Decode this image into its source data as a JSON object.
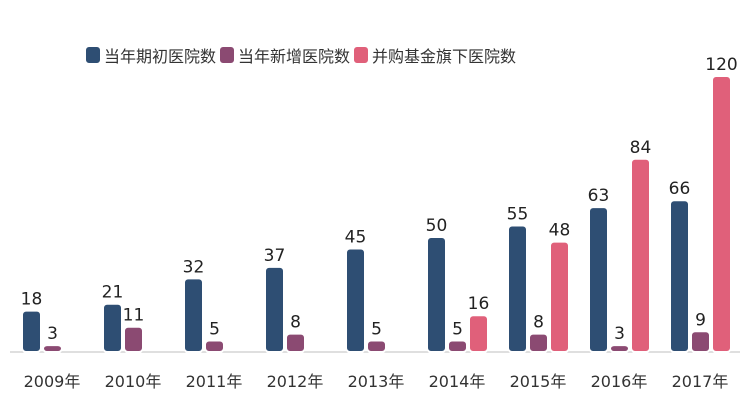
{
  "chart_data": {
    "type": "bar",
    "title": "",
    "xlabel": "",
    "ylabel": "",
    "categories": [
      "2009年",
      "2010年",
      "2011年",
      "2012年",
      "2013年",
      "2014年",
      "2015年",
      "2016年",
      "2017年"
    ],
    "series": [
      {
        "name": "当年期初医院数",
        "color": "#2e4e73",
        "values": [
          18,
          21,
          32,
          37,
          45,
          50,
          55,
          63,
          66
        ]
      },
      {
        "name": "当年新增医院数",
        "color": "#8b4a72",
        "values": [
          3,
          11,
          5,
          8,
          5,
          5,
          8,
          3,
          9
        ]
      },
      {
        "name": "并购基金旗下医院数",
        "color": "#e0607a",
        "values": [
          null,
          null,
          null,
          null,
          null,
          16,
          48,
          84,
          120
        ]
      }
    ],
    "ylim": [
      0,
      120
    ],
    "legend_position": "top",
    "grid": false,
    "data_labels": true
  }
}
